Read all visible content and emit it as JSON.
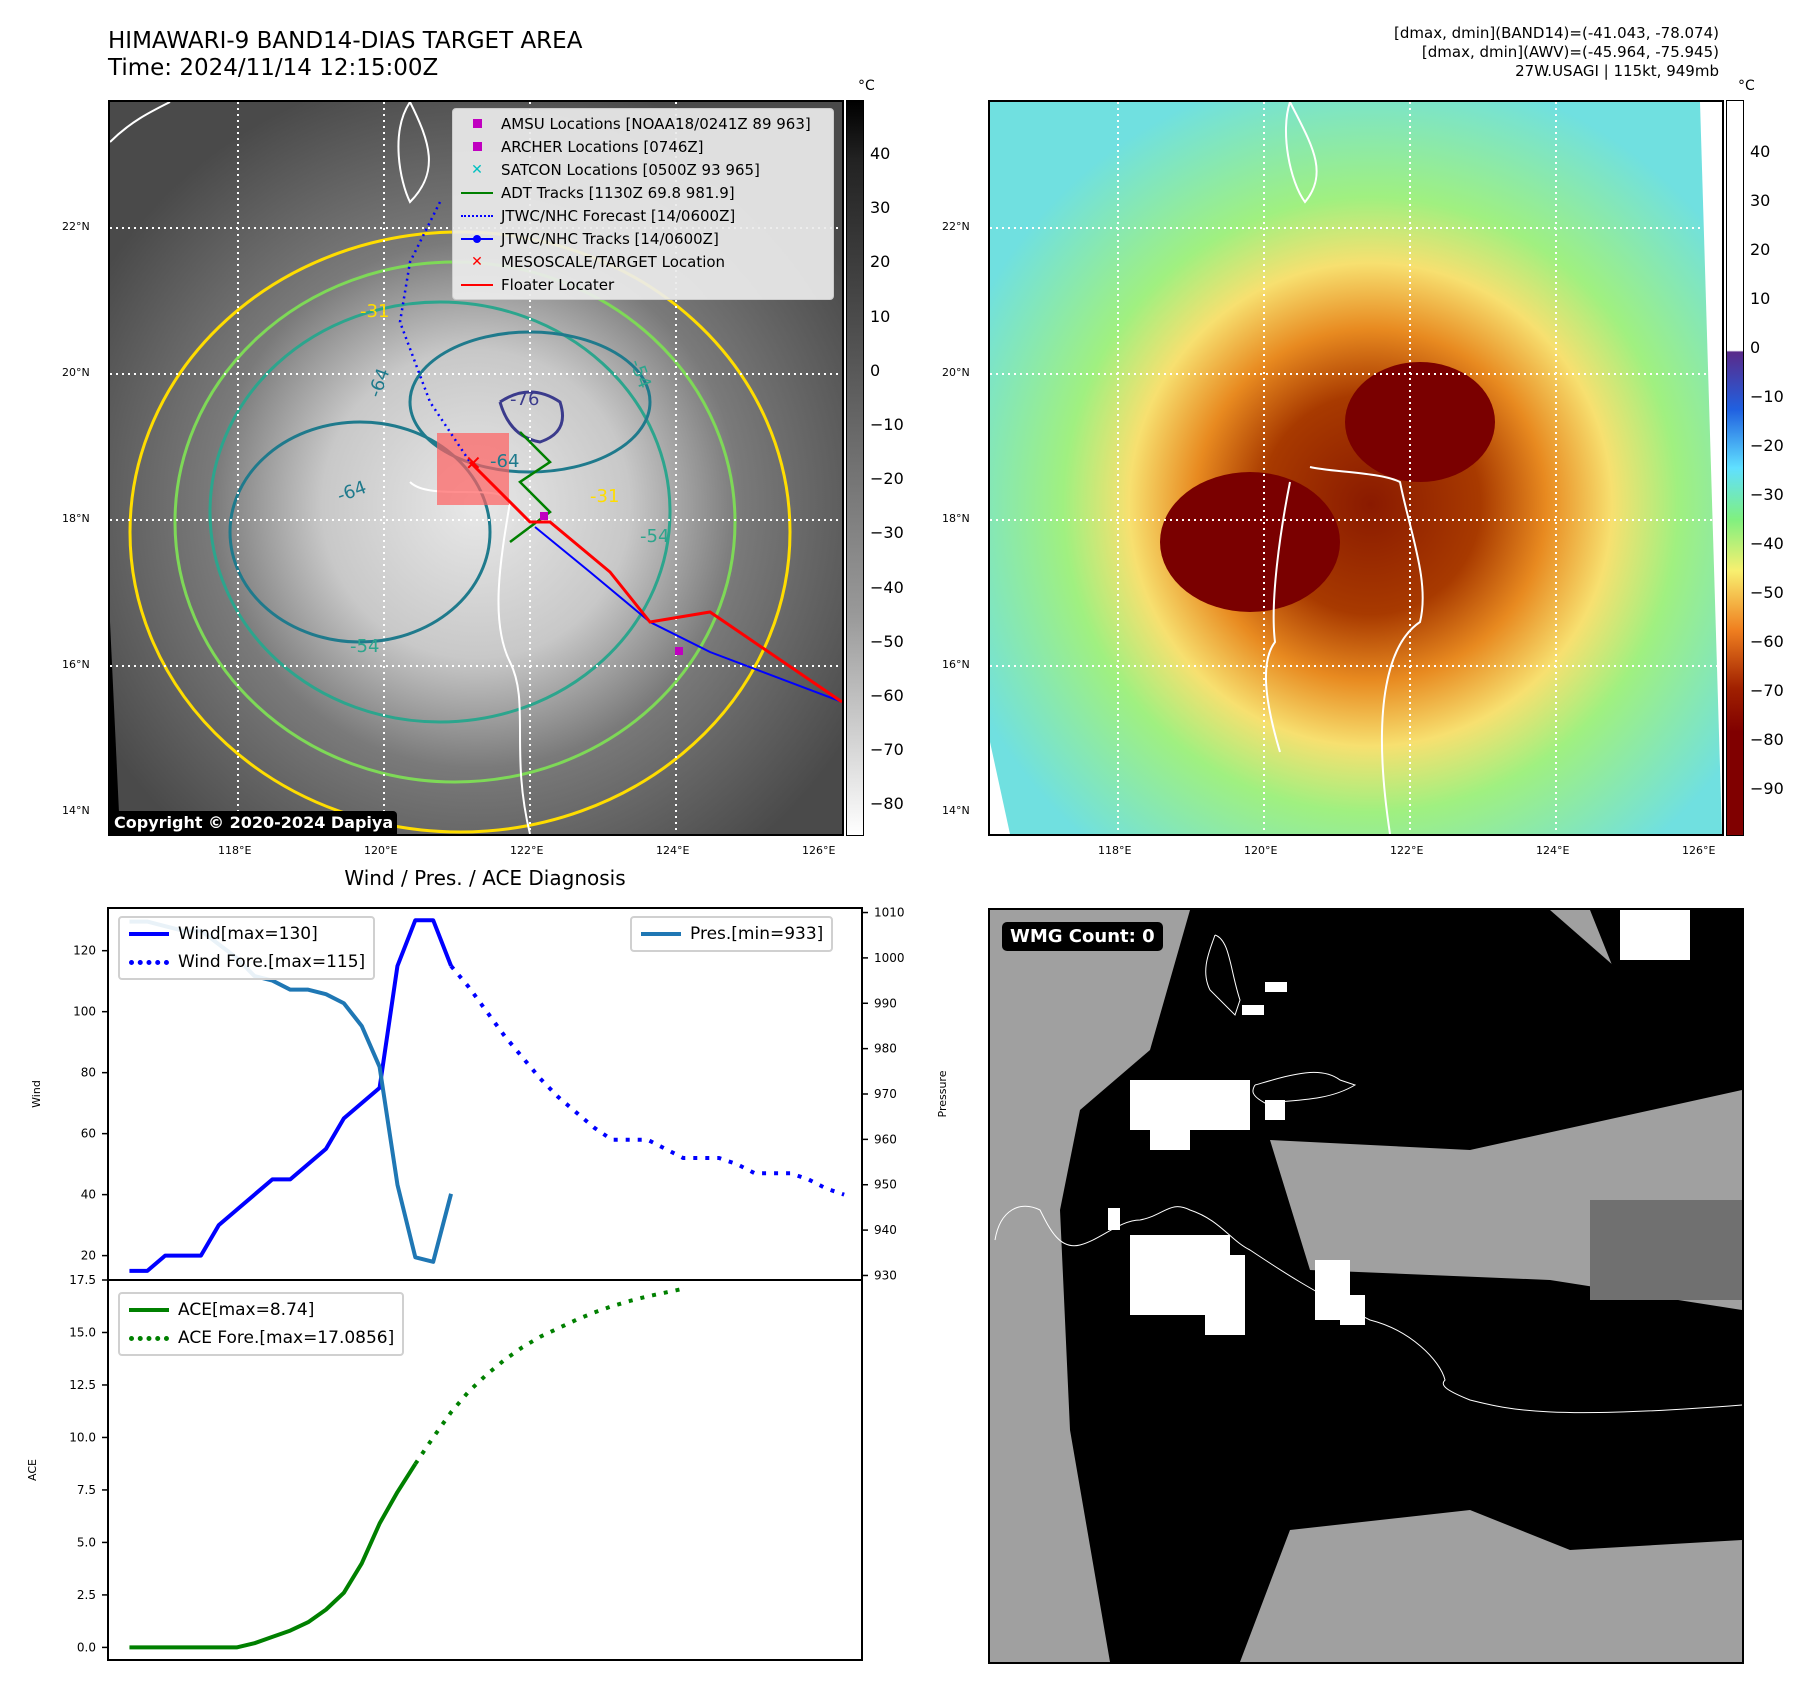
{
  "header": {
    "title_line1": "HIMAWARI-9 BAND14-DIAS TARGET AREA",
    "title_line2": "Time: 2024/11/14 12:15:00Z",
    "info_line1": "[dmax, dmin](BAND14)=(-41.043, -78.074)",
    "info_line2": "[dmax, dmin](AWV)=(-45.964, -75.945)",
    "info_line3": "27W.USAGI | 115kt, 949mb"
  },
  "map_axes": {
    "lat_labels": [
      "22°N",
      "20°N",
      "18°N",
      "16°N",
      "14°N"
    ],
    "lon_labels": [
      "118°E",
      "120°E",
      "122°E",
      "124°E",
      "126°E"
    ]
  },
  "ir_panel": {
    "copyright": "Copyright © 2020-2024 Dapiya",
    "contour_labels": [
      "-31",
      "-64",
      "-76",
      "-64",
      "-64",
      "-54",
      "-31",
      "-54",
      "-54"
    ],
    "colorbar": {
      "unit": "°C",
      "ticks": [
        "40",
        "30",
        "20",
        "10",
        "0",
        "−10",
        "−20",
        "−30",
        "−40",
        "−50",
        "−60",
        "−70",
        "−80"
      ]
    },
    "legend": [
      {
        "label": "AMSU Locations [NOAA18/0241Z 89 963]",
        "symbol": "square",
        "color": "#c000c0"
      },
      {
        "label": "ARCHER Locations [0746Z]",
        "symbol": "square",
        "color": "#c000c0"
      },
      {
        "label": "SATCON Locations [0500Z 93 965]",
        "symbol": "x",
        "color": "#00c0c0"
      },
      {
        "label": "ADT Tracks [1130Z 69.8 981.9]",
        "symbol": "line",
        "color": "#008000"
      },
      {
        "label": "JTWC/NHC Forecast [14/0600Z]",
        "symbol": "dotted",
        "color": "#0000ff"
      },
      {
        "label": "JTWC/NHC Tracks [14/0600Z]",
        "symbol": "line-dot",
        "color": "#0000ff"
      },
      {
        "label": "MESOSCALE/TARGET Location",
        "symbol": "x",
        "color": "#ff0000"
      },
      {
        "label": "Floater Locater",
        "symbol": "line",
        "color": "#ff0000"
      }
    ]
  },
  "awv_panel": {
    "colorbar": {
      "unit": "°C",
      "ticks": [
        "40",
        "30",
        "20",
        "10",
        "0",
        "−10",
        "−20",
        "−30",
        "−40",
        "−50",
        "−60",
        "−70",
        "−80",
        "−90"
      ]
    }
  },
  "wmg_panel": {
    "badge": "WMG Count: 0"
  },
  "chart_data": [
    {
      "type": "line",
      "title": "Wind / Pres. / ACE Diagnosis",
      "ylabel": "Wind",
      "y2label": "Pressure",
      "ylim": [
        12,
        134
      ],
      "y2lim": [
        929,
        1011
      ],
      "yticks": [
        "20",
        "40",
        "60",
        "80",
        "100",
        "120"
      ],
      "y2ticks": [
        "930",
        "940",
        "950",
        "960",
        "970",
        "980",
        "990",
        "1000",
        "1010"
      ],
      "x": [
        0,
        1,
        2,
        3,
        4,
        5,
        6,
        7,
        8,
        9,
        10,
        11,
        12,
        13,
        14,
        15,
        16,
        17,
        18,
        19,
        20,
        21,
        22,
        23,
        24,
        25,
        26,
        27,
        28,
        29,
        30,
        31,
        32,
        33,
        34,
        35,
        36,
        37,
        38,
        39,
        40
      ],
      "series": [
        {
          "name": "Wind[max=130]",
          "style": "solid",
          "color": "#0000ff",
          "axis": "left",
          "points": [
            [
              0,
              15
            ],
            [
              1,
              15
            ],
            [
              2,
              20
            ],
            [
              3,
              20
            ],
            [
              4,
              20
            ],
            [
              5,
              30
            ],
            [
              6,
              35
            ],
            [
              7,
              40
            ],
            [
              8,
              45
            ],
            [
              9,
              45
            ],
            [
              10,
              50
            ],
            [
              11,
              55
            ],
            [
              12,
              65
            ],
            [
              13,
              70
            ],
            [
              14,
              75
            ],
            [
              15,
              115
            ],
            [
              16,
              130
            ],
            [
              17,
              130
            ],
            [
              18,
              115
            ]
          ]
        },
        {
          "name": "Wind Fore.[max=115]",
          "style": "dotted",
          "color": "#0000ff",
          "axis": "left",
          "points": [
            [
              18,
              115
            ],
            [
              19,
              108
            ],
            [
              20,
              100
            ],
            [
              21,
              92
            ],
            [
              22,
              85
            ],
            [
              23,
              78
            ],
            [
              24,
              72
            ],
            [
              25,
              67
            ],
            [
              26,
              62
            ],
            [
              27,
              58
            ],
            [
              28,
              58
            ],
            [
              29,
              58
            ],
            [
              30,
              55
            ],
            [
              31,
              52
            ],
            [
              32,
              52
            ],
            [
              33,
              52
            ],
            [
              34,
              50
            ],
            [
              35,
              47
            ],
            [
              36,
              47
            ],
            [
              37,
              47
            ],
            [
              38,
              45
            ],
            [
              39,
              42
            ],
            [
              40,
              40
            ]
          ]
        },
        {
          "name": "Pres.[min=933]",
          "style": "solid",
          "color": "#1f77b4",
          "axis": "right",
          "points": [
            [
              0,
              1008
            ],
            [
              1,
              1008
            ],
            [
              2,
              1007
            ],
            [
              3,
              1006
            ],
            [
              4,
              1006
            ],
            [
              5,
              1003
            ],
            [
              6,
              1000
            ],
            [
              7,
              996
            ],
            [
              8,
              995
            ],
            [
              9,
              993
            ],
            [
              10,
              993
            ],
            [
              11,
              992
            ],
            [
              12,
              990
            ],
            [
              13,
              985
            ],
            [
              14,
              976
            ],
            [
              15,
              950
            ],
            [
              16,
              934
            ],
            [
              17,
              933
            ],
            [
              18,
              948
            ]
          ]
        }
      ]
    },
    {
      "type": "line",
      "ylabel": "ACE",
      "ylim": [
        -0.6,
        17.5
      ],
      "yticks": [
        "0.0",
        "2.5",
        "5.0",
        "7.5",
        "10.0",
        "12.5",
        "15.0",
        "17.5"
      ],
      "series": [
        {
          "name": "ACE[max=8.74]",
          "style": "solid",
          "color": "#008000",
          "points": [
            [
              0,
              0
            ],
            [
              1,
              0
            ],
            [
              2,
              0
            ],
            [
              3,
              0
            ],
            [
              4,
              0
            ],
            [
              5,
              0
            ],
            [
              6,
              0
            ],
            [
              7,
              0.2
            ],
            [
              8,
              0.5
            ],
            [
              9,
              0.8
            ],
            [
              10,
              1.2
            ],
            [
              11,
              1.8
            ],
            [
              12,
              2.6
            ],
            [
              13,
              4.0
            ],
            [
              14,
              5.9
            ],
            [
              15,
              7.4
            ],
            [
              16,
              8.74
            ]
          ]
        },
        {
          "name": "ACE Fore.[max=17.0856]",
          "style": "dotted",
          "color": "#008000",
          "points": [
            [
              16,
              8.74
            ],
            [
              17,
              10.0
            ],
            [
              18,
              11.2
            ],
            [
              19,
              12.2
            ],
            [
              20,
              13.0
            ],
            [
              21,
              13.7
            ],
            [
              22,
              14.3
            ],
            [
              23,
              14.8
            ],
            [
              24,
              15.2
            ],
            [
              25,
              15.6
            ],
            [
              26,
              15.95
            ],
            [
              27,
              16.25
            ],
            [
              28,
              16.5
            ],
            [
              29,
              16.72
            ],
            [
              30,
              16.9
            ],
            [
              31,
              17.0856
            ]
          ]
        }
      ]
    }
  ]
}
